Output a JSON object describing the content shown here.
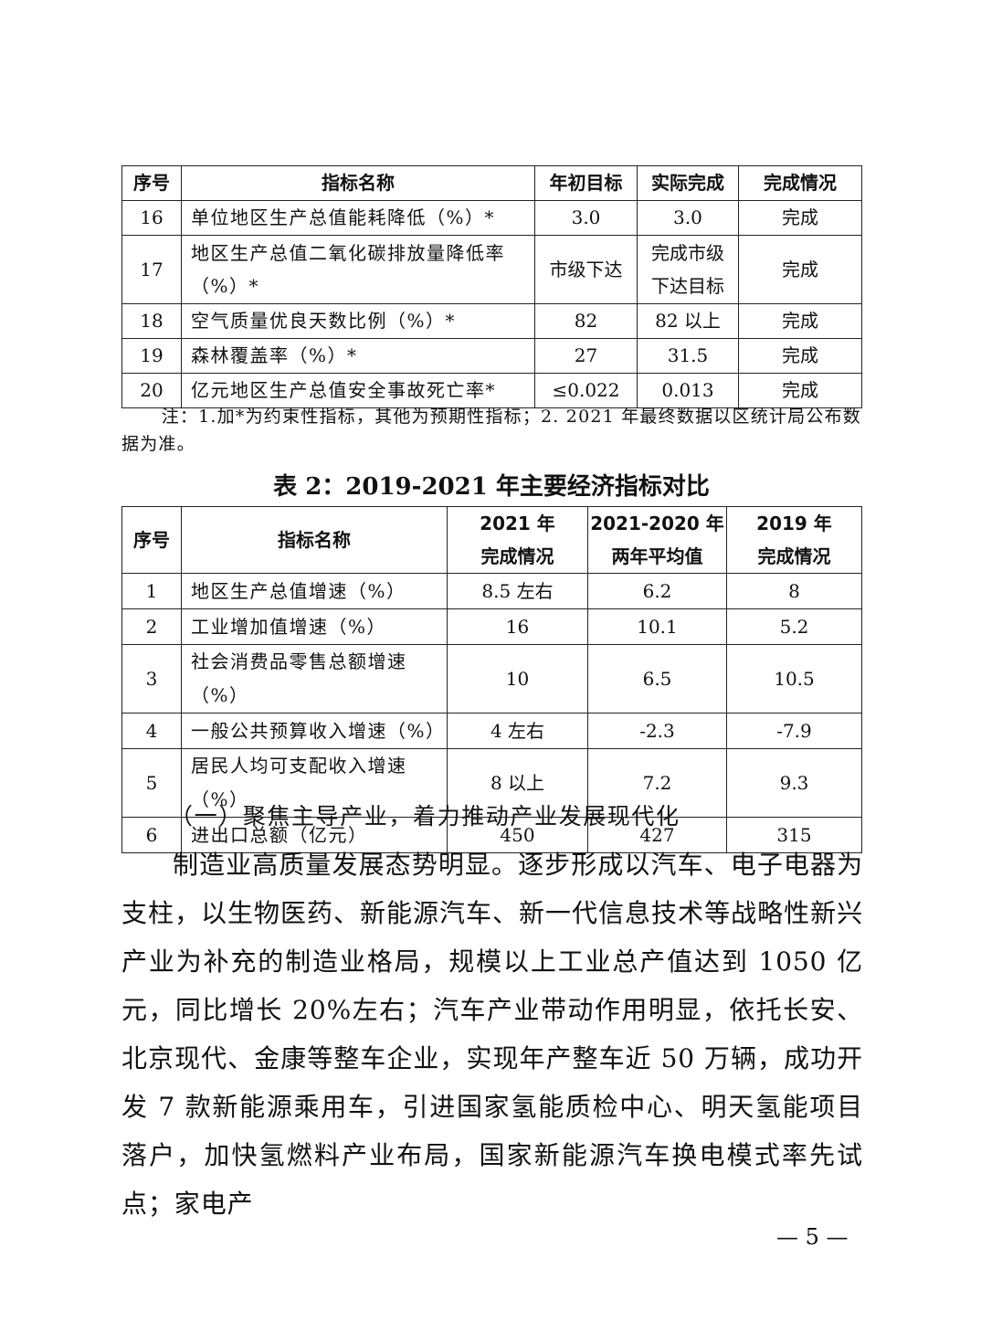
{
  "table1": {
    "header": [
      "序号",
      "指标名称",
      "年初目标",
      "实际完成",
      "完成情况"
    ],
    "rows": [
      [
        "16",
        "单位地区生产总值能耗降低（%）*",
        "3.0",
        "3.0",
        "完成"
      ],
      [
        "17",
        [
          "地区生产总值二氧化碳排放量降低率",
          "（%）*"
        ],
        "市级下达",
        [
          "完成市级",
          "下达目标"
        ],
        "完成"
      ],
      [
        "18",
        "空气质量优良天数比例（%）*",
        "82",
        "82 以上",
        "完成"
      ],
      [
        "19",
        "森林覆盖率（%）*",
        "27",
        "31.5",
        "完成"
      ],
      [
        "20",
        "亿元地区生产总值安全事故死亡率*",
        "≤0.022",
        "0.013",
        "完成"
      ]
    ]
  },
  "note": "注：1.加*为约束性指标，其他为预期性指标；2. 2021 年最终数据以区统计局公布数据为准。",
  "table2": {
    "title": "表 2：2019-2021 年主要经济指标对比",
    "header": [
      "序号",
      "指标名称",
      [
        "2021 年",
        "完成情况"
      ],
      [
        "2021-2020 年",
        "两年平均值"
      ],
      [
        "2019 年",
        "完成情况"
      ]
    ],
    "rows": [
      [
        "1",
        "地区生产总值增速（%）",
        "8.5 左右",
        "6.2",
        "8"
      ],
      [
        "2",
        "工业增加值增速（%）",
        "16",
        "10.1",
        "5.2"
      ],
      [
        "3",
        "社会消费品零售总额增速（%）",
        "10",
        "6.5",
        "10.5"
      ],
      [
        "4",
        "一般公共预算收入增速（%）",
        "4 左右",
        "-2.3",
        "-7.9"
      ],
      [
        "5",
        "居民人均可支配收入增速（%）",
        "8 以上",
        "7.2",
        "9.3"
      ],
      [
        "6",
        "进出口总额（亿元）",
        "450",
        "427",
        "315"
      ]
    ]
  },
  "heading": "（一）聚焦主导产业，着力推动产业发展现代化",
  "paragraph": "制造业高质量发展态势明显。逐步形成以汽车、电子电器为支柱，以生物医药、新能源汽车、新一代信息技术等战略性新兴产业为补充的制造业格局，规模以上工业总产值达到 1050 亿元，同比增长 20%左右；汽车产业带动作用明显，依托长安、北京现代、金康等整车企业，实现年产整车近 50 万辆，成功开发 7 款新能源乘用车，引进国家氢能质检中心、明天氢能项目落户，加快氢燃料产业布局，国家新能源汽车换电模式率先试点；家电产",
  "page_number": "— 5 —"
}
